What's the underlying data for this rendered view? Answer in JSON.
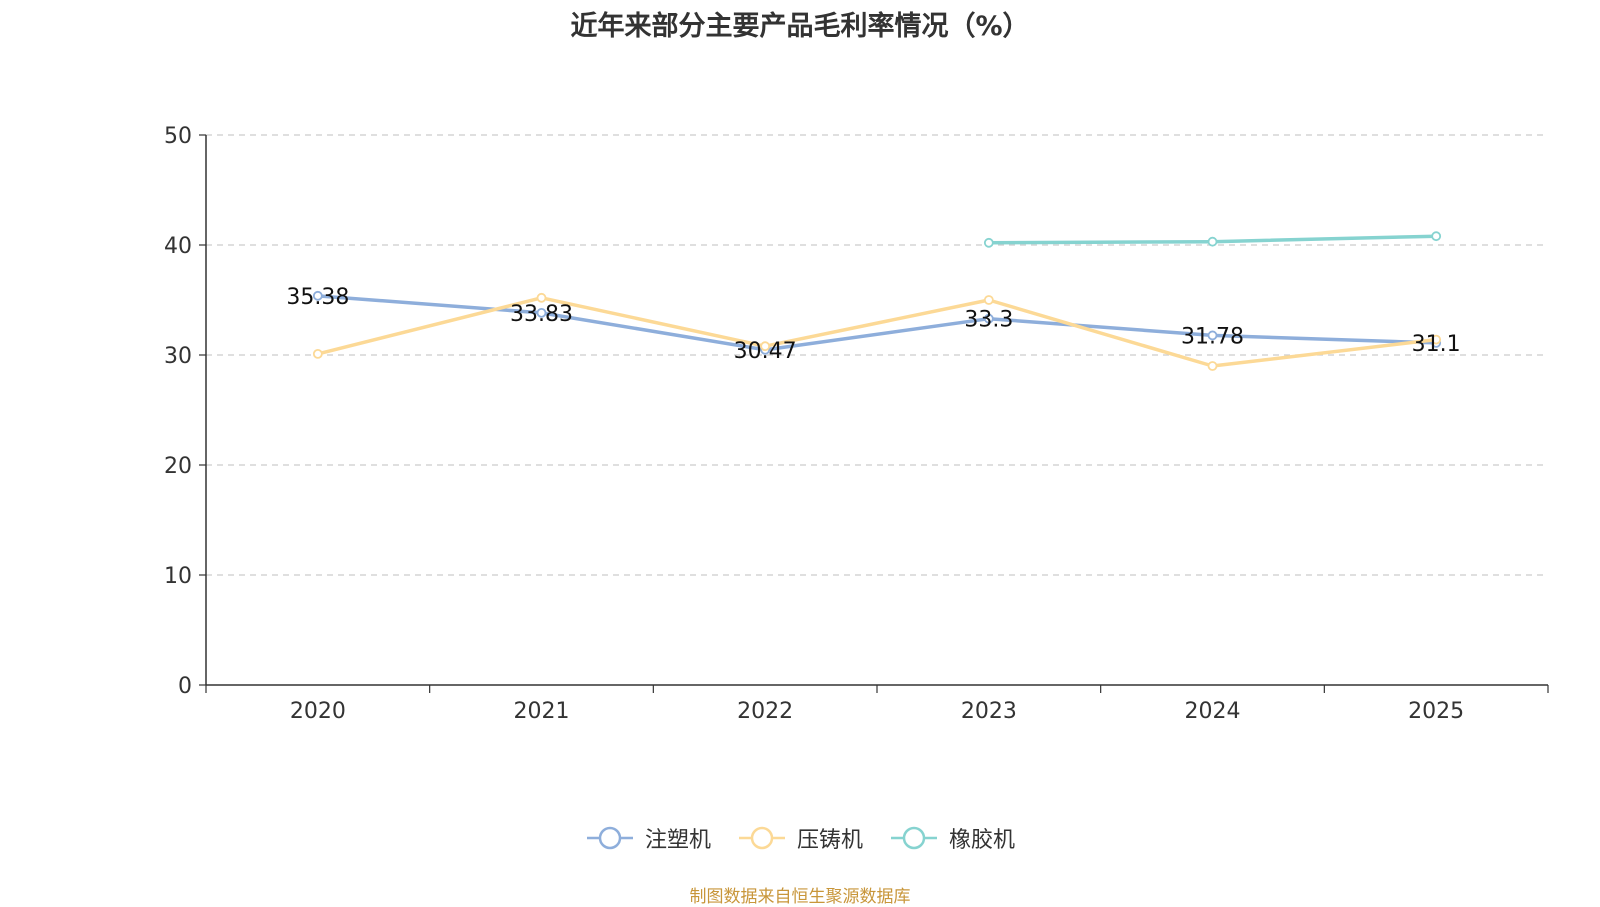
{
  "chart_data": {
    "type": "line",
    "title": "近年来部分主要产品毛利率情况（%）",
    "categories": [
      "2020",
      "2021",
      "2022",
      "2023",
      "2024",
      "2025"
    ],
    "ylim": [
      0,
      50
    ],
    "yticks": [
      0,
      10,
      20,
      30,
      40,
      50
    ],
    "grid": true,
    "legend_position": "bottom",
    "series": [
      {
        "name": "注塑机",
        "color": "#8eaedb",
        "values": [
          35.38,
          33.83,
          30.47,
          33.3,
          31.78,
          31.1
        ],
        "show_labels": true
      },
      {
        "name": "压铸机",
        "color": "#fcd996",
        "values": [
          30.1,
          35.2,
          30.8,
          35.0,
          29.0,
          31.4
        ],
        "show_labels": false
      },
      {
        "name": "橡胶机",
        "color": "#86d3d0",
        "values": [
          null,
          null,
          null,
          40.2,
          40.3,
          40.8
        ],
        "show_labels": false
      }
    ]
  },
  "source_note": "制图数据来自恒生聚源数据库"
}
